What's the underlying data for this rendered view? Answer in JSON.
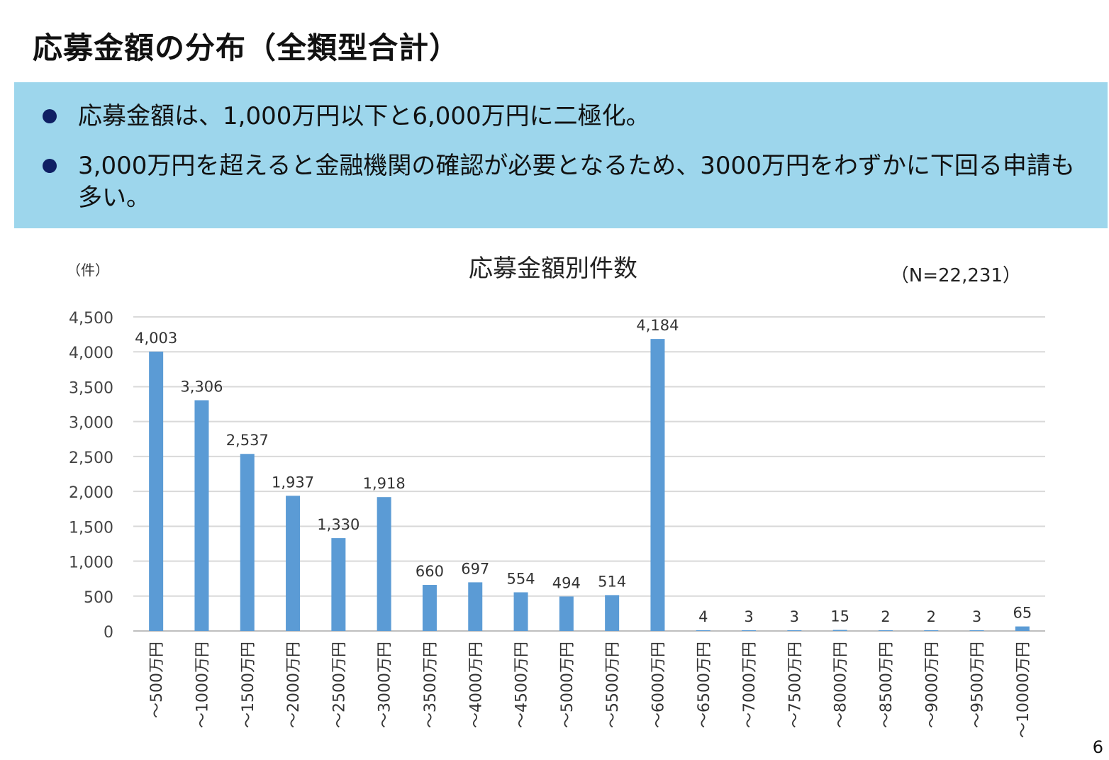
{
  "slide": {
    "title": "応募金額の分布（全類型合計）",
    "bullets": [
      "応募金額は、1,000万円以下と6,000万円に二極化。",
      "3,000万円を超えると金融機関の確認が必要となるため、3000万円をわずかに下回る申請も多い。"
    ],
    "page_number": "6"
  },
  "colors": {
    "summary_bg": "#9dd6ec",
    "bullet": "#0f1f63",
    "bar": "#5b9bd5",
    "grid": "#d9d9d9"
  },
  "chart_data": {
    "type": "bar",
    "title": "応募金額別件数",
    "ylabel": "（件）",
    "note": "（N=22,231）",
    "categories": [
      "～500万円",
      "～1000万円",
      "～1500万円",
      "～2000万円",
      "～2500万円",
      "～3000万円",
      "～3500万円",
      "～4000万円",
      "～4500万円",
      "～5000万円",
      "～5500万円",
      "～6000万円",
      "～6500万円",
      "～7000万円",
      "～7500万円",
      "～8000万円",
      "～8500万円",
      "～9000万円",
      "～9500万円",
      "～10000万円"
    ],
    "values": [
      4003,
      3306,
      2537,
      1937,
      1330,
      1918,
      660,
      697,
      554,
      494,
      514,
      4184,
      4,
      3,
      3,
      15,
      2,
      2,
      3,
      65
    ],
    "value_labels": [
      "4,003",
      "3,306",
      "2,537",
      "1,937",
      "1,330",
      "1,918",
      "660",
      "697",
      "554",
      "494",
      "514",
      "4,184",
      "4",
      "3",
      "3",
      "15",
      "2",
      "2",
      "3",
      "65"
    ],
    "yticks": [
      "0",
      "500",
      "1,000",
      "1,500",
      "2,000",
      "2,500",
      "3,000",
      "3,500",
      "4,000",
      "4,500"
    ],
    "ylim": [
      0,
      4500
    ],
    "grid": true,
    "legend": "none"
  }
}
